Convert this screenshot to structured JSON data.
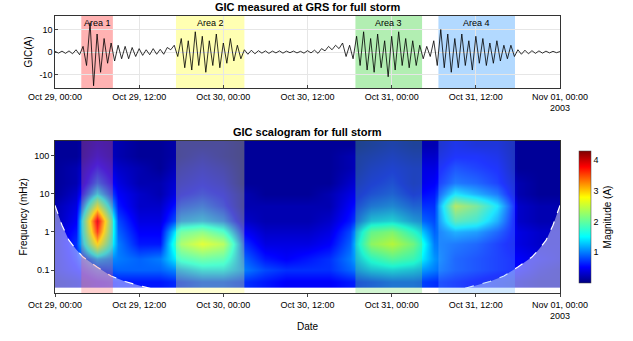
{
  "chart_data": [
    {
      "type": "line",
      "title": "GIC measured at GRS for full storm",
      "y_label": "GIC(A)",
      "color": "#000000",
      "grid": true,
      "xlim": [
        "2003-10-29 00:00",
        "2003-11-01 00:00"
      ],
      "xticks": [
        {
          "value": "2003-10-29 00:00",
          "label": "Oct 29, 00:00"
        },
        {
          "value": "2003-10-29 12:00",
          "label": "Oct 29, 12:00"
        },
        {
          "value": "2003-10-30 00:00",
          "label": "Oct 30, 00:00"
        },
        {
          "value": "2003-10-30 12:00",
          "label": "Oct 30, 12:00"
        },
        {
          "value": "2003-10-31 00:00",
          "label": "Oct 31, 00:00"
        },
        {
          "value": "2003-10-31 12:00",
          "label": "Oct 31, 12:00"
        },
        {
          "value": "2003-11-01 00:00",
          "label": "Nov 01, 00:00\n2003"
        }
      ],
      "ylim": [
        -16,
        16
      ],
      "yticks": [
        -10,
        0,
        10
      ],
      "areas": [
        {
          "label": "Area 1",
          "start": "2003-10-29 03:45",
          "end": "2003-10-29 08:15",
          "color": "#ff6666"
        },
        {
          "label": "Area 2",
          "start": "2003-10-29 17:15",
          "end": "2003-10-30 03:00",
          "color": "#ffff66"
        },
        {
          "label": "Area 3",
          "start": "2003-10-30 18:50",
          "end": "2003-10-31 04:20",
          "color": "#66dd66"
        },
        {
          "label": "Area 4",
          "start": "2003-10-31 06:40",
          "end": "2003-10-31 17:35",
          "color": "#66b3ff"
        }
      ],
      "x": [
        "2003-10-29 00:00",
        "2003-10-29 00:30",
        "2003-10-29 01:00",
        "2003-10-29 01:30",
        "2003-10-29 02:00",
        "2003-10-29 02:30",
        "2003-10-29 03:00",
        "2003-10-29 03:30",
        "2003-10-29 04:00",
        "2003-10-29 04:30",
        "2003-10-29 05:00",
        "2003-10-29 05:30",
        "2003-10-29 06:00",
        "2003-10-29 06:30",
        "2003-10-29 07:00",
        "2003-10-29 07:30",
        "2003-10-29 08:00",
        "2003-10-29 08:30",
        "2003-10-29 09:00",
        "2003-10-29 09:30",
        "2003-10-29 10:00",
        "2003-10-29 10:30",
        "2003-10-29 11:00",
        "2003-10-29 11:30",
        "2003-10-29 12:00",
        "2003-10-29 12:30",
        "2003-10-29 13:00",
        "2003-10-29 13:30",
        "2003-10-29 14:00",
        "2003-10-29 14:30",
        "2003-10-29 15:00",
        "2003-10-29 15:30",
        "2003-10-29 16:00",
        "2003-10-29 16:30",
        "2003-10-29 17:00",
        "2003-10-29 17:30",
        "2003-10-29 18:00",
        "2003-10-29 18:30",
        "2003-10-29 19:00",
        "2003-10-29 19:30",
        "2003-10-29 20:00",
        "2003-10-29 20:30",
        "2003-10-29 21:00",
        "2003-10-29 21:30",
        "2003-10-29 22:00",
        "2003-10-29 22:30",
        "2003-10-29 23:00",
        "2003-10-29 23:30",
        "2003-10-30 00:00",
        "2003-10-30 00:30",
        "2003-10-30 01:00",
        "2003-10-30 01:30",
        "2003-10-30 02:00",
        "2003-10-30 02:30",
        "2003-10-30 03:00",
        "2003-10-30 03:30",
        "2003-10-30 04:00",
        "2003-10-30 04:30",
        "2003-10-30 05:00",
        "2003-10-30 05:30",
        "2003-10-30 06:00",
        "2003-10-30 06:30",
        "2003-10-30 07:00",
        "2003-10-30 07:30",
        "2003-10-30 08:00",
        "2003-10-30 08:30",
        "2003-10-30 09:00",
        "2003-10-30 09:30",
        "2003-10-30 10:00",
        "2003-10-30 10:30",
        "2003-10-30 11:00",
        "2003-10-30 11:30",
        "2003-10-30 12:00",
        "2003-10-30 12:30",
        "2003-10-30 13:00",
        "2003-10-30 13:30",
        "2003-10-30 14:00",
        "2003-10-30 14:30",
        "2003-10-30 15:00",
        "2003-10-30 15:30",
        "2003-10-30 16:00",
        "2003-10-30 16:30",
        "2003-10-30 17:00",
        "2003-10-30 17:30",
        "2003-10-30 18:00",
        "2003-10-30 18:30",
        "2003-10-30 19:00",
        "2003-10-30 19:30",
        "2003-10-30 20:00",
        "2003-10-30 20:30",
        "2003-10-30 21:00",
        "2003-10-30 21:30",
        "2003-10-30 22:00",
        "2003-10-30 22:30",
        "2003-10-30 23:00",
        "2003-10-30 23:30",
        "2003-10-31 00:00",
        "2003-10-31 00:30",
        "2003-10-31 01:00",
        "2003-10-31 01:30",
        "2003-10-31 02:00",
        "2003-10-31 02:30",
        "2003-10-31 03:00",
        "2003-10-31 03:30",
        "2003-10-31 04:00",
        "2003-10-31 04:30",
        "2003-10-31 05:00",
        "2003-10-31 05:30",
        "2003-10-31 06:00",
        "2003-10-31 06:30",
        "2003-10-31 07:00",
        "2003-10-31 07:30",
        "2003-10-31 08:00",
        "2003-10-31 08:30",
        "2003-10-31 09:00",
        "2003-10-31 09:30",
        "2003-10-31 10:00",
        "2003-10-31 10:30",
        "2003-10-31 11:00",
        "2003-10-31 11:30",
        "2003-10-31 12:00",
        "2003-10-31 12:30",
        "2003-10-31 13:00",
        "2003-10-31 13:30",
        "2003-10-31 14:00",
        "2003-10-31 14:30",
        "2003-10-31 15:00",
        "2003-10-31 15:30",
        "2003-10-31 16:00",
        "2003-10-31 16:30",
        "2003-10-31 17:00",
        "2003-10-31 17:30",
        "2003-10-31 18:00",
        "2003-10-31 18:30",
        "2003-10-31 19:00",
        "2003-10-31 19:30",
        "2003-10-31 20:00",
        "2003-10-31 20:30",
        "2003-10-31 21:00",
        "2003-10-31 21:30",
        "2003-10-31 22:00",
        "2003-10-31 22:30",
        "2003-10-31 23:00",
        "2003-10-31 23:30",
        "2003-11-01 00:00"
      ],
      "values": [
        0.3,
        -0.5,
        0.4,
        -0.6,
        0.5,
        -0.8,
        1.0,
        -1.2,
        2.5,
        -6,
        13,
        -15,
        8,
        -9,
        6,
        -5,
        4,
        -4,
        3,
        -3,
        2.5,
        -3,
        2,
        -2,
        1.5,
        -1.5,
        1,
        -1.2,
        1.5,
        -1,
        1.2,
        -1,
        2,
        1,
        3,
        -2,
        6,
        -7,
        5,
        -8,
        9,
        -6,
        7,
        -9,
        5,
        -6,
        8,
        -7,
        4,
        -5,
        6,
        -4,
        3,
        -3,
        1,
        -1,
        0.8,
        -0.8,
        0.6,
        -0.5,
        0.5,
        -0.6,
        0.4,
        -0.4,
        0.5,
        -0.5,
        0.4,
        -0.3,
        0.4,
        -0.4,
        0.3,
        -0.5,
        0.6,
        -0.4,
        0.8,
        -0.6,
        1.5,
        0.5,
        2.5,
        1,
        3,
        1.5,
        4,
        -2,
        3,
        -3,
        7,
        -6,
        9,
        -8,
        6,
        -9,
        8,
        -7,
        5,
        -11,
        7,
        -8,
        9,
        -6,
        6,
        -7,
        5,
        -6,
        3,
        -3,
        2.5,
        -2,
        5,
        -6,
        10,
        -7,
        8,
        -9,
        6,
        -7,
        8,
        -6,
        5,
        -8,
        7,
        -5,
        6,
        -6,
        4,
        -5,
        5,
        -4,
        3,
        -3,
        3,
        -2,
        1,
        -1,
        0.8,
        -0.8,
        0.6,
        -0.6,
        0.5,
        -0.5,
        0.4,
        -0.4,
        0.3,
        -0.3,
        0.2
      ]
    },
    {
      "type": "heatmap",
      "title": "GIC scalogram for full storm",
      "x_label": "Date",
      "y_label": "Frequency (mHz)",
      "log": "y",
      "xlim": [
        "2003-10-29 00:00",
        "2003-11-01 00:00"
      ],
      "xticks": [
        {
          "value": "2003-10-29 00:00",
          "label": "Oct 29, 00:00"
        },
        {
          "value": "2003-10-29 12:00",
          "label": "Oct 29, 12:00"
        },
        {
          "value": "2003-10-30 00:00",
          "label": "Oct 30, 00:00"
        },
        {
          "value": "2003-10-30 12:00",
          "label": "Oct 30, 12:00"
        },
        {
          "value": "2003-10-31 00:00",
          "label": "Oct 31, 00:00"
        },
        {
          "value": "2003-10-31 12:00",
          "label": "Oct 31, 12:00"
        },
        {
          "value": "2003-11-01 00:00",
          "label": "Nov 01, 00:00\n2003"
        }
      ],
      "ylim": [
        0.025,
        250
      ],
      "yticks": [
        0.1,
        1,
        10,
        100
      ],
      "colorbar": {
        "title": "Magnitude (A)",
        "range": [
          0,
          4.3
        ],
        "ticks": [
          1,
          2,
          3,
          4
        ]
      },
      "areas": [
        {
          "start": "2003-10-29 03:45",
          "end": "2003-10-29 08:15",
          "color": "#ff6666"
        },
        {
          "start": "2003-10-29 17:15",
          "end": "2003-10-30 03:00",
          "color": "#ffff66"
        },
        {
          "start": "2003-10-30 18:50",
          "end": "2003-10-31 04:20",
          "color": "#66dd66"
        },
        {
          "start": "2003-10-31 06:40",
          "end": "2003-10-31 17:35",
          "color": "#66b3ff"
        }
      ],
      "cone_of_influence": [
        {
          "x": [
            "2003-10-29 00:00",
            "2003-10-29 01:00",
            "2003-10-29 02:00",
            "2003-10-29 03:00",
            "2003-10-29 04:00",
            "2003-10-29 06:00",
            "2003-10-29 08:00",
            "2003-10-29 10:00",
            "2003-10-29 13:00",
            "2003-10-29 16:00"
          ],
          "values": [
            5,
            1.5,
            0.6,
            0.35,
            0.22,
            0.12,
            0.07,
            0.05,
            0.035,
            0.025
          ]
        },
        {
          "x": [
            "2003-10-31 08:00",
            "2003-10-31 11:00",
            "2003-10-31 14:00",
            "2003-10-31 16:00",
            "2003-10-31 18:00",
            "2003-10-31 20:00",
            "2003-10-31 21:00",
            "2003-10-31 22:00",
            "2003-10-31 23:00",
            "2003-11-01 00:00"
          ],
          "values": [
            0.025,
            0.035,
            0.05,
            0.07,
            0.12,
            0.22,
            0.35,
            0.6,
            1.5,
            5
          ]
        }
      ],
      "x": [
        "2003-10-29 00:00",
        "2003-10-29 03:00",
        "2003-10-29 06:00",
        "2003-10-29 09:00",
        "2003-10-29 12:00",
        "2003-10-29 15:00",
        "2003-10-29 18:00",
        "2003-10-29 21:00",
        "2003-10-30 00:00",
        "2003-10-30 03:00",
        "2003-10-30 06:00",
        "2003-10-30 09:00",
        "2003-10-30 12:00",
        "2003-10-30 15:00",
        "2003-10-30 18:00",
        "2003-10-30 21:00",
        "2003-10-31 00:00",
        "2003-10-31 03:00",
        "2003-10-31 06:00",
        "2003-10-31 09:00",
        "2003-10-31 12:00",
        "2003-10-31 15:00",
        "2003-10-31 18:00",
        "2003-10-31 21:00",
        "2003-11-01 00:00"
      ],
      "y": [
        0.05,
        0.1,
        0.2,
        0.5,
        1,
        2,
        5,
        10,
        20,
        50,
        100,
        200
      ],
      "cells": [
        [
          0.2,
          0.3,
          0.5,
          0.6,
          0.6,
          0.6,
          0.7,
          0.8,
          0.8,
          0.7,
          0.6,
          0.5,
          0.5,
          0.5,
          0.6,
          0.7,
          0.8,
          0.8,
          0.7,
          0.6,
          0.5,
          0.4,
          0.3,
          0.2,
          0.2
        ],
        [
          0.3,
          0.5,
          0.8,
          0.9,
          0.9,
          0.9,
          1.1,
          1.3,
          1.3,
          1.0,
          0.8,
          0.7,
          0.7,
          0.7,
          0.9,
          1.2,
          1.3,
          1.2,
          1.0,
          0.8,
          0.7,
          0.6,
          0.5,
          0.3,
          0.2
        ],
        [
          0.3,
          0.6,
          1.2,
          1.0,
          0.9,
          1.0,
          1.6,
          1.8,
          1.7,
          0.9,
          0.6,
          0.5,
          0.6,
          0.7,
          1.0,
          1.6,
          1.9,
          1.7,
          1.1,
          0.8,
          0.7,
          0.6,
          0.5,
          0.4,
          0.3
        ],
        [
          0.3,
          0.7,
          2.8,
          1.0,
          0.6,
          0.6,
          2.2,
          2.6,
          2.3,
          0.7,
          0.4,
          0.4,
          0.4,
          0.5,
          0.9,
          2.3,
          2.6,
          2.1,
          1.0,
          0.9,
          0.8,
          0.6,
          0.4,
          0.3,
          0.3
        ],
        [
          0.3,
          0.6,
          3.6,
          0.9,
          0.5,
          0.5,
          1.8,
          2.0,
          1.6,
          0.5,
          0.3,
          0.3,
          0.3,
          0.4,
          0.8,
          2.0,
          2.2,
          1.6,
          0.9,
          1.2,
          1.1,
          0.8,
          0.4,
          0.3,
          0.3
        ],
        [
          0.2,
          0.5,
          4.0,
          0.8,
          0.4,
          0.4,
          1.0,
          1.1,
          0.9,
          0.3,
          0.2,
          0.2,
          0.2,
          0.3,
          0.6,
          1.2,
          1.3,
          1.0,
          0.8,
          2.0,
          1.8,
          1.2,
          0.3,
          0.2,
          0.2
        ],
        [
          0.2,
          0.4,
          2.5,
          0.6,
          0.3,
          0.3,
          0.7,
          0.8,
          0.6,
          0.2,
          0.2,
          0.2,
          0.2,
          0.2,
          0.5,
          0.8,
          0.9,
          0.7,
          0.7,
          2.6,
          2.2,
          1.5,
          0.3,
          0.2,
          0.2
        ],
        [
          0.1,
          0.3,
          1.4,
          0.5,
          0.3,
          0.2,
          0.5,
          0.6,
          0.5,
          0.2,
          0.1,
          0.1,
          0.1,
          0.2,
          0.4,
          0.6,
          0.7,
          0.5,
          0.6,
          1.5,
          1.2,
          0.9,
          0.2,
          0.1,
          0.1
        ],
        [
          0.1,
          0.2,
          0.9,
          0.4,
          0.2,
          0.2,
          0.4,
          0.5,
          0.4,
          0.1,
          0.1,
          0.1,
          0.1,
          0.1,
          0.3,
          0.5,
          0.6,
          0.4,
          0.5,
          0.9,
          0.8,
          0.6,
          0.2,
          0.1,
          0.1
        ],
        [
          0.1,
          0.2,
          0.6,
          0.3,
          0.2,
          0.1,
          0.3,
          0.4,
          0.3,
          0.1,
          0.1,
          0.1,
          0.1,
          0.1,
          0.2,
          0.4,
          0.5,
          0.4,
          0.4,
          0.7,
          0.6,
          0.5,
          0.1,
          0.1,
          0.1
        ],
        [
          0.1,
          0.1,
          0.4,
          0.2,
          0.1,
          0.1,
          0.2,
          0.3,
          0.2,
          0.1,
          0.1,
          0.1,
          0.1,
          0.1,
          0.2,
          0.3,
          0.4,
          0.3,
          0.3,
          0.5,
          0.5,
          0.4,
          0.1,
          0.1,
          0.1
        ],
        [
          0.1,
          0.1,
          0.3,
          0.2,
          0.1,
          0.1,
          0.2,
          0.2,
          0.2,
          0.1,
          0.1,
          0.1,
          0.1,
          0.1,
          0.1,
          0.2,
          0.3,
          0.2,
          0.2,
          0.4,
          0.3,
          0.3,
          0.1,
          0.1,
          0.1
        ]
      ]
    }
  ]
}
